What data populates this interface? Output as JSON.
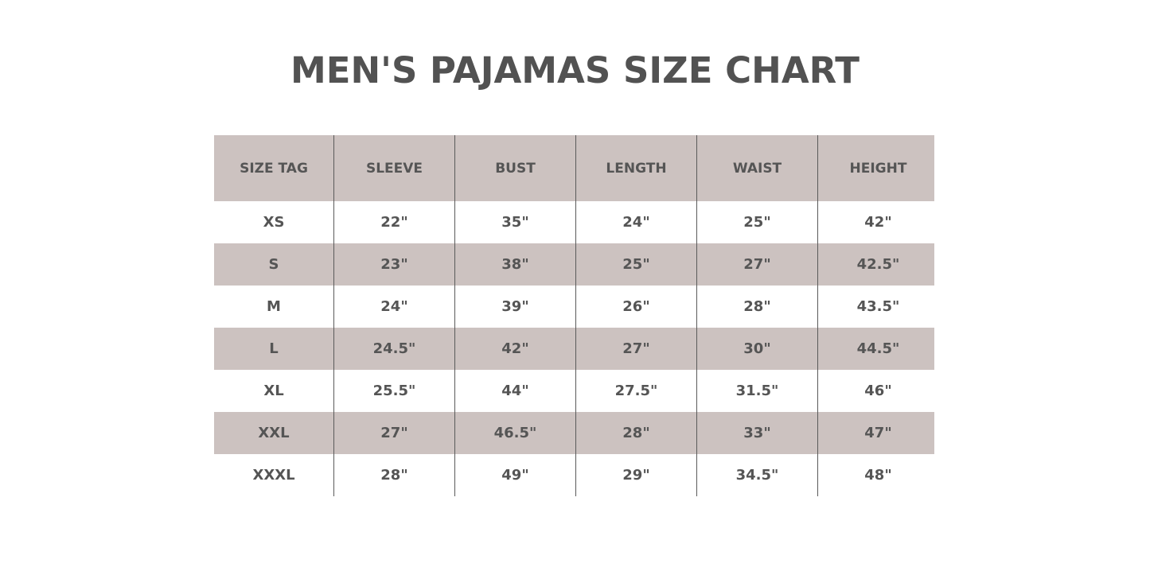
{
  "title": "MEN'S PAJAMAS SIZE CHART",
  "colors": {
    "band": "#ccc2c0",
    "text": "#555555"
  },
  "table": {
    "headers": [
      "SIZE TAG",
      "SLEEVE",
      "BUST",
      "LENGTH",
      "WAIST",
      "HEIGHT"
    ],
    "rows": [
      [
        "XS",
        "22\"",
        "35\"",
        "24\"",
        "25\"",
        "42\""
      ],
      [
        "S",
        "23\"",
        "38\"",
        "25\"",
        "27\"",
        "42.5\""
      ],
      [
        "M",
        "24\"",
        "39\"",
        "26\"",
        "28\"",
        "43.5\""
      ],
      [
        "L",
        "24.5\"",
        "42\"",
        "27\"",
        "30\"",
        "44.5\""
      ],
      [
        "XL",
        "25.5\"",
        "44\"",
        "27.5\"",
        "31.5\"",
        "46\""
      ],
      [
        "XXL",
        "27\"",
        "46.5\"",
        "28\"",
        "33\"",
        "47\""
      ],
      [
        "XXXL",
        "28\"",
        "49\"",
        "29\"",
        "34.5\"",
        "48\""
      ]
    ]
  }
}
